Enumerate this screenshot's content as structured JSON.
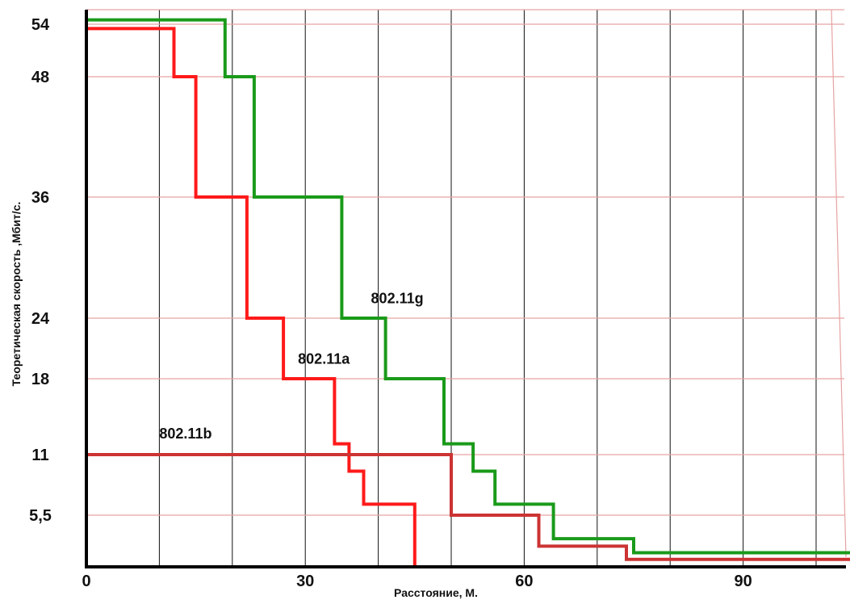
{
  "chart_data": {
    "type": "line",
    "xlabel": "Расстояние, М.",
    "ylabel": "Теоретическая скорость ,Мбит/с.",
    "xlim": [
      0,
      105
    ],
    "x_ticks": [
      "0",
      "30",
      "60",
      "90"
    ],
    "y_ticks": [
      {
        "value": 5.5,
        "label": "5,5"
      },
      {
        "value": 11,
        "label": "11"
      },
      {
        "value": 18,
        "label": "18"
      },
      {
        "value": 24,
        "label": "24"
      },
      {
        "value": 36,
        "label": "36"
      },
      {
        "value": 48,
        "label": "48"
      },
      {
        "value": 54,
        "label": "54"
      }
    ],
    "grid": true,
    "series": [
      {
        "name": "802.11g",
        "color": "#1a9a1a",
        "points": [
          [
            0,
            54.5
          ],
          [
            19,
            54.5
          ],
          [
            19,
            48
          ],
          [
            23,
            48
          ],
          [
            23,
            36
          ],
          [
            35,
            36
          ],
          [
            35,
            24
          ],
          [
            41,
            24
          ],
          [
            41,
            18
          ],
          [
            49,
            18
          ],
          [
            49,
            12
          ],
          [
            53,
            12
          ],
          [
            53,
            9.5
          ],
          [
            56,
            9.5
          ],
          [
            56,
            6.5
          ],
          [
            64,
            6.5
          ],
          [
            64,
            3
          ],
          [
            75,
            3
          ],
          [
            75,
            1.5
          ],
          [
            105,
            1.5
          ]
        ]
      },
      {
        "name": "802.11a",
        "color": "#ff1a1a",
        "points": [
          [
            0,
            53.5
          ],
          [
            12,
            53.5
          ],
          [
            12,
            48
          ],
          [
            15,
            48
          ],
          [
            15,
            36
          ],
          [
            22,
            36
          ],
          [
            22,
            24
          ],
          [
            27,
            24
          ],
          [
            27,
            18
          ],
          [
            34,
            18
          ],
          [
            34,
            12
          ],
          [
            36,
            12
          ],
          [
            36,
            9.5
          ],
          [
            38,
            9.5
          ],
          [
            38,
            6.5
          ],
          [
            45,
            6.5
          ],
          [
            45,
            0
          ]
        ]
      },
      {
        "name": "802.11b",
        "color": "#cc3333",
        "points": [
          [
            0,
            11
          ],
          [
            50,
            11
          ],
          [
            50,
            5.5
          ],
          [
            62,
            5.5
          ],
          [
            62,
            2.2
          ],
          [
            74,
            2.2
          ],
          [
            74,
            0.8
          ],
          [
            105,
            0.8
          ]
        ]
      }
    ],
    "annotations": [
      {
        "text": "802.11g",
        "x": 39,
        "y": 25.5
      },
      {
        "text": "802.11a",
        "x": 29,
        "y": 19.5
      },
      {
        "text": "802.11b",
        "x": 10,
        "y": 12.5
      }
    ]
  }
}
